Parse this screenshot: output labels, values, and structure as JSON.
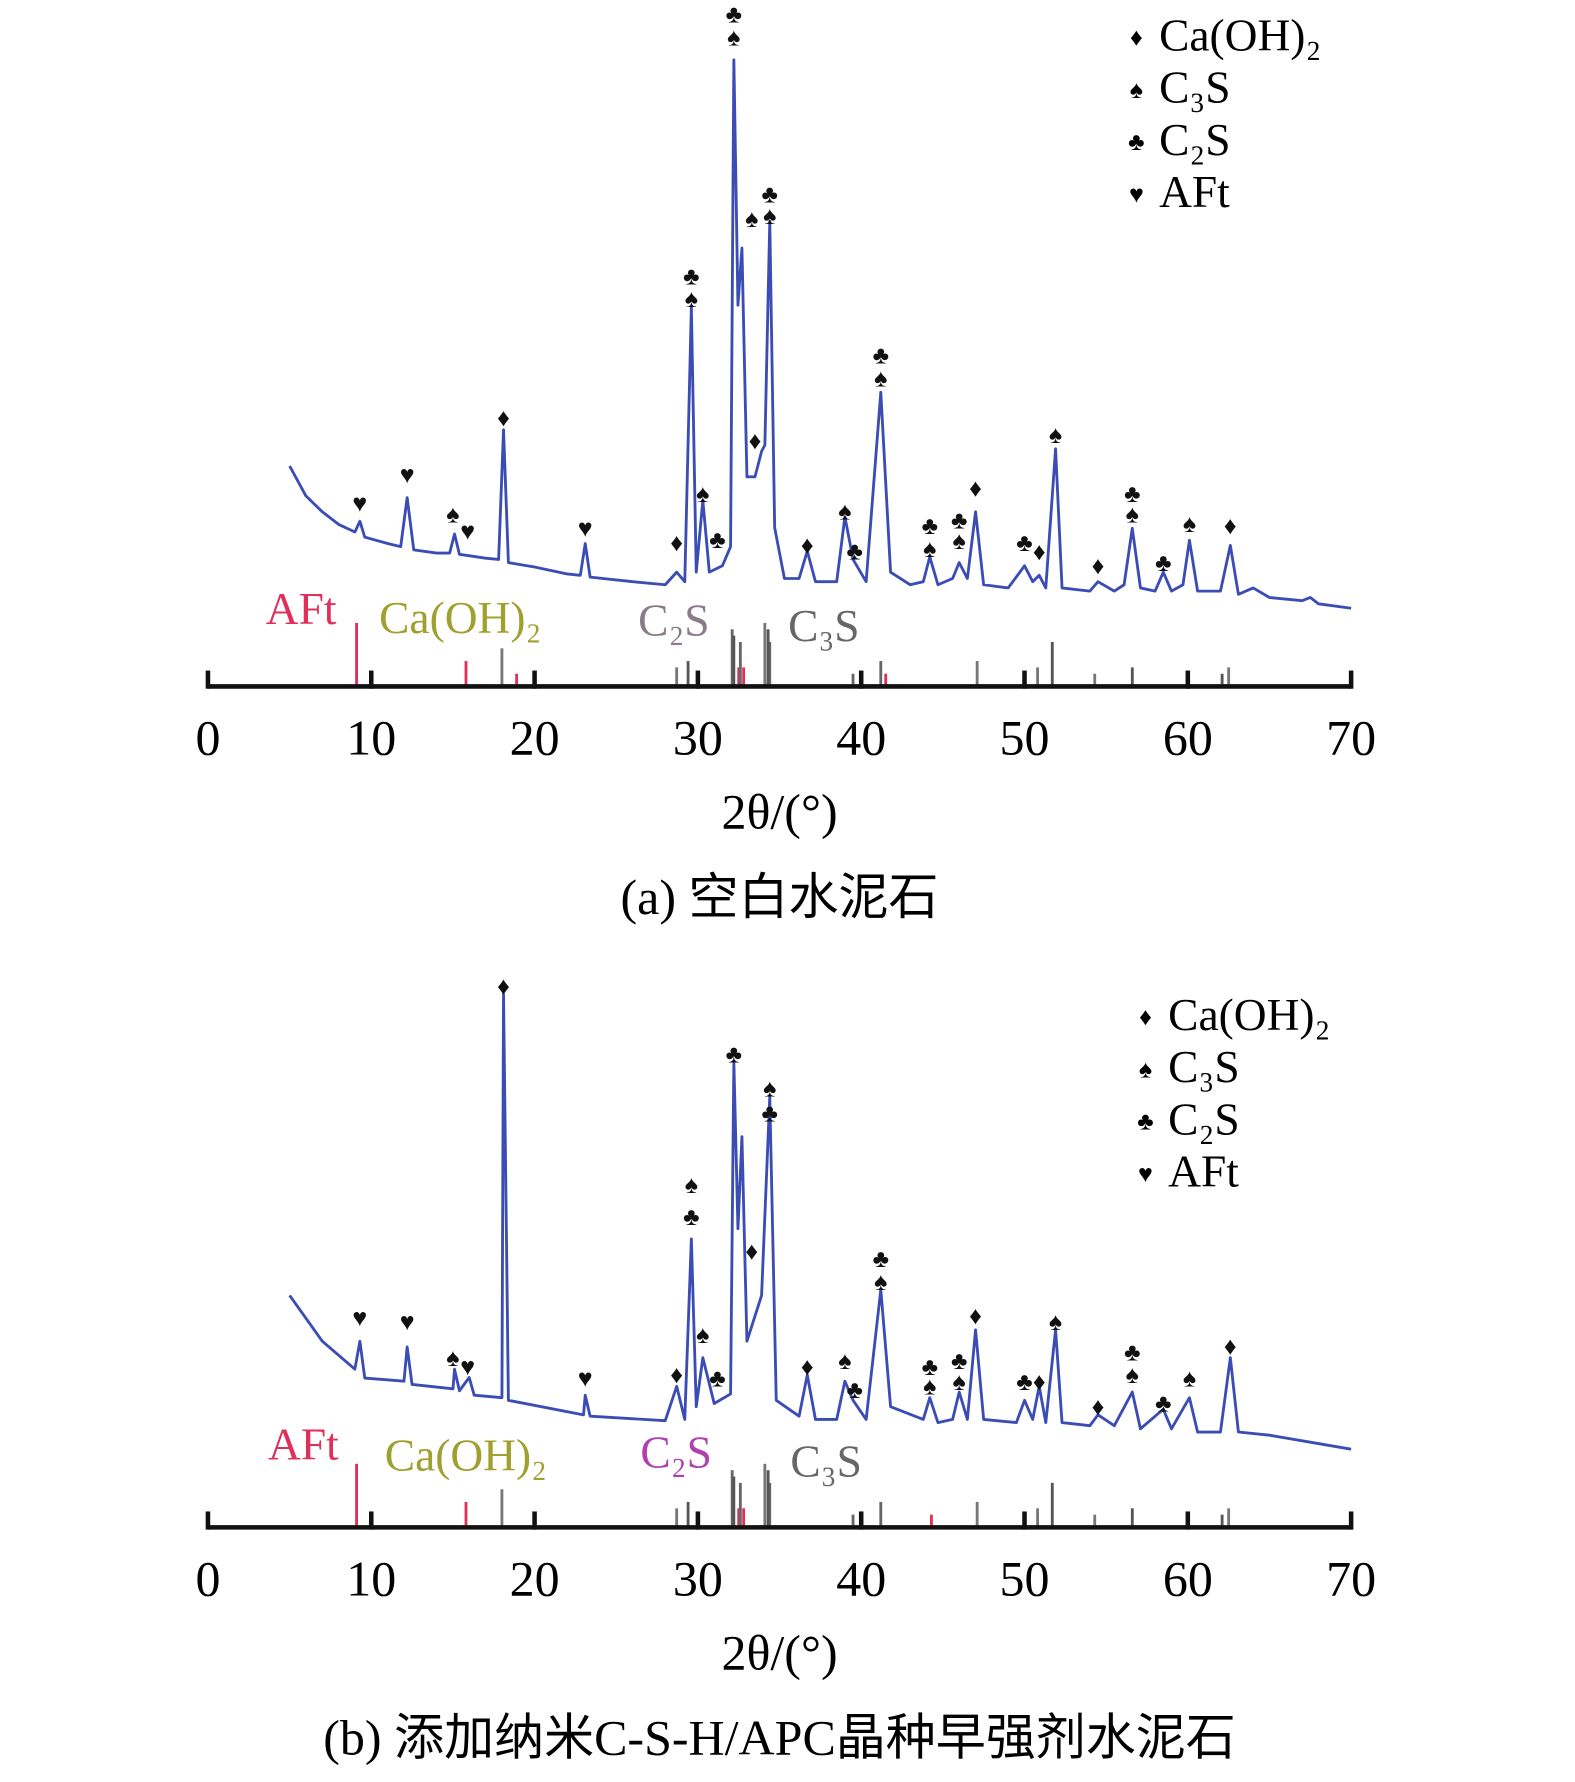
{
  "chart_data": [
    {
      "type": "line",
      "caption": "(a) 空白水泥石",
      "xlabel": "2θ/(°)",
      "xlim": [
        0,
        70
      ],
      "xticks": [
        0,
        10,
        20,
        30,
        40,
        50,
        60,
        70
      ],
      "ylim": [
        0,
        110
      ],
      "series": [
        {
          "color": "#3b4db5",
          "x": [
            5,
            6,
            7,
            8,
            9,
            9.3,
            9.6,
            11,
            11.8,
            12.2,
            12.6,
            14,
            14.8,
            15.1,
            15.4,
            17,
            17.8,
            18.1,
            18.4,
            20,
            22,
            22.8,
            23.1,
            23.4,
            26,
            28,
            28.7,
            29.2,
            29.6,
            29.9,
            30.3,
            30.7,
            31.5,
            32,
            32.2,
            32.45,
            32.7,
            33,
            33.5,
            33.9,
            34.1,
            34.4,
            34.7,
            35.3,
            36.2,
            36.7,
            37.2,
            38.5,
            39,
            39.5,
            40.3,
            41.2,
            41.8,
            43,
            43.8,
            44.2,
            44.7,
            45.6,
            46,
            46.5,
            47,
            47.5,
            49,
            50,
            50.5,
            50.9,
            51.3,
            51.9,
            52.3,
            54,
            54.5,
            55.5,
            56.1,
            56.6,
            57.1,
            58,
            58.5,
            59,
            59.7,
            60.1,
            60.6,
            62,
            62.6,
            63.1,
            64,
            65,
            67,
            67.5,
            68,
            70
          ],
          "values": [
            34.7,
            30,
            27.5,
            25.5,
            24.3,
            26,
            23.5,
            22.5,
            22,
            29.7,
            21.5,
            21,
            21,
            24,
            20.8,
            20.2,
            20,
            40.4,
            19.5,
            18.8,
            17.7,
            17.5,
            22.5,
            17.2,
            16.5,
            16,
            18,
            16.5,
            59.7,
            18,
            29.3,
            18,
            19,
            22,
            98.6,
            60,
            69,
            33,
            33,
            37,
            38,
            73.2,
            25,
            17,
            17,
            21.3,
            16.5,
            16.5,
            26.7,
            20,
            16.5,
            46.3,
            18,
            16,
            16.5,
            20.4,
            16,
            17,
            19.5,
            17,
            27.5,
            16,
            15.5,
            19,
            16.5,
            17.5,
            15.5,
            37.4,
            15.5,
            15,
            16.5,
            15,
            16,
            24.9,
            15.5,
            15,
            18,
            15,
            16,
            23,
            15,
            15,
            22.2,
            14.5,
            15.5,
            14,
            13.5,
            14,
            13,
            12.3
          ]
        }
      ],
      "markers": [
        {
          "x": 9.3,
          "y": 28.4,
          "symbol": "♥"
        },
        {
          "x": 12.2,
          "y": 32.9,
          "symbol": "♥"
        },
        {
          "x": 15,
          "y": 26.7,
          "symbol": "♠"
        },
        {
          "x": 15.9,
          "y": 24,
          "symbol": "♥"
        },
        {
          "x": 18.1,
          "y": 41.9,
          "symbol": "♦"
        },
        {
          "x": 23.1,
          "y": 24.5,
          "symbol": "♥"
        },
        {
          "x": 28.7,
          "y": 22.2,
          "symbol": "♦"
        },
        {
          "x": 29.6,
          "y": 60.6,
          "symbol": "♠"
        },
        {
          "x": 29.6,
          "y": 64.2,
          "symbol": "♣"
        },
        {
          "x": 30.3,
          "y": 29.9,
          "symbol": "♠"
        },
        {
          "x": 31.2,
          "y": 22.7,
          "symbol": "♣"
        },
        {
          "x": 32.2,
          "y": 101.8,
          "symbol": "♠"
        },
        {
          "x": 32.2,
          "y": 105.4,
          "symbol": "♣"
        },
        {
          "x": 33.3,
          "y": 73.2,
          "symbol": "♠"
        },
        {
          "x": 33.5,
          "y": 38.3,
          "symbol": "♦"
        },
        {
          "x": 34.4,
          "y": 73.7,
          "symbol": "♠"
        },
        {
          "x": 34.4,
          "y": 77.1,
          "symbol": "♣"
        },
        {
          "x": 36.7,
          "y": 21.8,
          "symbol": "♦"
        },
        {
          "x": 39,
          "y": 27.2,
          "symbol": "♠"
        },
        {
          "x": 39.6,
          "y": 20.9,
          "symbol": "♣"
        },
        {
          "x": 41.2,
          "y": 48.1,
          "symbol": "♠"
        },
        {
          "x": 41.2,
          "y": 51.7,
          "symbol": "♣"
        },
        {
          "x": 44.2,
          "y": 21.3,
          "symbol": "♠"
        },
        {
          "x": 44.2,
          "y": 24.9,
          "symbol": "♣"
        },
        {
          "x": 46,
          "y": 22.5,
          "symbol": "♠"
        },
        {
          "x": 46,
          "y": 25.8,
          "symbol": "♣"
        },
        {
          "x": 47,
          "y": 30.8,
          "symbol": "♦"
        },
        {
          "x": 50,
          "y": 22.2,
          "symbol": "♣"
        },
        {
          "x": 50.9,
          "y": 20.8,
          "symbol": "♦"
        },
        {
          "x": 51.9,
          "y": 39.2,
          "symbol": "♠"
        },
        {
          "x": 54.5,
          "y": 18.6,
          "symbol": "♦"
        },
        {
          "x": 56.6,
          "y": 26.7,
          "symbol": "♠"
        },
        {
          "x": 56.6,
          "y": 29.9,
          "symbol": "♣"
        },
        {
          "x": 58.5,
          "y": 19.1,
          "symbol": "♣"
        },
        {
          "x": 60.1,
          "y": 25.2,
          "symbol": "♠"
        },
        {
          "x": 62.6,
          "y": 24.9,
          "symbol": "♦"
        }
      ],
      "legend": [
        {
          "symbol": "♦",
          "label": "Ca(OH)₂"
        },
        {
          "symbol": "♠",
          "label": "C₃S"
        },
        {
          "symbol": "♣",
          "label": "C₂S"
        },
        {
          "symbol": "♥",
          "label": "AFt"
        }
      ],
      "reference": [
        {
          "label": "AFt",
          "color": "#e0305a",
          "stick_color": "#e0305a",
          "peaks": [
            {
              "x": 9.1,
              "h": 10
            },
            {
              "x": 15.8,
              "h": 4
            },
            {
              "x": 18.9,
              "h": 2
            },
            {
              "x": 32.5,
              "h": 3
            },
            {
              "x": 32.8,
              "h": 3
            },
            {
              "x": 41.5,
              "h": 2
            }
          ]
        },
        {
          "label": "Ca(OH)₂",
          "color": "#a0a030",
          "stick_color": "#777777",
          "peaks": [
            {
              "x": 18,
              "h": 6
            },
            {
              "x": 28.7,
              "h": 3
            },
            {
              "x": 34.1,
              "h": 10
            },
            {
              "x": 47.1,
              "h": 4
            },
            {
              "x": 50.8,
              "h": 3
            },
            {
              "x": 54.3,
              "h": 2
            },
            {
              "x": 62.5,
              "h": 3
            }
          ]
        },
        {
          "label": "C₂S",
          "color": "#8a7a8a",
          "stick_color": "#666666",
          "peaks": [
            {
              "x": 32.1,
              "h": 9
            },
            {
              "x": 32.6,
              "h": 7
            },
            {
              "x": 34.4,
              "h": 7
            },
            {
              "x": 41.2,
              "h": 4
            },
            {
              "x": 39.5,
              "h": 2
            }
          ]
        },
        {
          "label": "C₃S",
          "color": "#666666",
          "stick_color": "#555555",
          "peaks": [
            {
              "x": 29.4,
              "h": 4
            },
            {
              "x": 32.2,
              "h": 8
            },
            {
              "x": 34.3,
              "h": 9
            },
            {
              "x": 51.7,
              "h": 7
            },
            {
              "x": 56.6,
              "h": 3
            },
            {
              "x": 60,
              "h": 2
            },
            {
              "x": 62.1,
              "h": 2
            }
          ]
        }
      ]
    },
    {
      "type": "line",
      "caption": "(b) 添加纳米C-S-H/APC晶种早强剂水泥石",
      "xlabel": "2θ/(°)",
      "xlim": [
        0,
        70
      ],
      "xticks": [
        0,
        10,
        20,
        30,
        40,
        50,
        60,
        70
      ],
      "ylim": [
        0,
        110
      ],
      "series": [
        {
          "color": "#3b4db5",
          "x": [
            5,
            7,
            9,
            9.3,
            9.6,
            12,
            12.2,
            12.5,
            15,
            15.1,
            15.4,
            16,
            16.3,
            18,
            18.1,
            18.4,
            23,
            23.1,
            23.4,
            28,
            28.7,
            29.2,
            29.6,
            29.9,
            30.3,
            31,
            32,
            32.2,
            32.45,
            32.7,
            33,
            33.9,
            34.4,
            34.8,
            36.2,
            36.7,
            37.2,
            38.5,
            39,
            39.5,
            40.3,
            41.2,
            41.8,
            43.8,
            44.2,
            44.7,
            45.6,
            46,
            46.5,
            47,
            47.5,
            49.5,
            50,
            50.5,
            50.9,
            51.3,
            51.9,
            52.3,
            54,
            54.5,
            55.5,
            56.6,
            57.1,
            58.5,
            59,
            60.1,
            60.6,
            62,
            62.6,
            63.1,
            65,
            70
          ],
          "values": [
            36.5,
            29.3,
            24.9,
            29.3,
            23.5,
            23,
            28.4,
            22.5,
            21.8,
            24.9,
            21.5,
            23.6,
            20.8,
            20.4,
            83.9,
            20,
            17.7,
            20.8,
            17.5,
            16.8,
            22.2,
            17,
            45.4,
            19,
            26.7,
            19.5,
            21,
            73.2,
            47,
            61.5,
            29.3,
            36.5,
            67.8,
            20,
            17.5,
            24,
            17,
            17,
            23,
            20,
            17,
            37.4,
            19,
            17,
            20.4,
            16.5,
            17,
            21.3,
            17,
            31.1,
            17,
            16.5,
            20,
            17,
            22.2,
            16.5,
            31.1,
            16.5,
            16,
            17.7,
            16,
            21.3,
            15.5,
            18.6,
            15.5,
            20.4,
            15,
            15,
            26.7,
            15,
            14.5,
            12.3
          ]
        }
      ],
      "markers": [
        {
          "x": 9.3,
          "y": 32.6,
          "symbol": "♥"
        },
        {
          "x": 12.2,
          "y": 32,
          "symbol": "♥"
        },
        {
          "x": 15,
          "y": 26.3,
          "symbol": "♠"
        },
        {
          "x": 15.9,
          "y": 24.9,
          "symbol": "♥"
        },
        {
          "x": 18.1,
          "y": 84.8,
          "symbol": "♦"
        },
        {
          "x": 23.1,
          "y": 23.1,
          "symbol": "♥"
        },
        {
          "x": 28.7,
          "y": 23.6,
          "symbol": "♦"
        },
        {
          "x": 29.6,
          "y": 48.5,
          "symbol": "♣"
        },
        {
          "x": 29.6,
          "y": 53.5,
          "symbol": "♠"
        },
        {
          "x": 30.3,
          "y": 29.9,
          "symbol": "♠"
        },
        {
          "x": 31.2,
          "y": 23.1,
          "symbol": "♣"
        },
        {
          "x": 32.2,
          "y": 74.1,
          "symbol": "♣"
        },
        {
          "x": 33.3,
          "y": 43.1,
          "symbol": "♦"
        },
        {
          "x": 34.4,
          "y": 64.8,
          "symbol": "♣"
        },
        {
          "x": 34.4,
          "y": 68.7,
          "symbol": "♠"
        },
        {
          "x": 36.7,
          "y": 24.9,
          "symbol": "♦"
        },
        {
          "x": 39,
          "y": 25.8,
          "symbol": "♠"
        },
        {
          "x": 39.6,
          "y": 21.3,
          "symbol": "♣"
        },
        {
          "x": 41.2,
          "y": 38.3,
          "symbol": "♠"
        },
        {
          "x": 41.2,
          "y": 41.9,
          "symbol": "♣"
        },
        {
          "x": 44.2,
          "y": 21.8,
          "symbol": "♠"
        },
        {
          "x": 44.2,
          "y": 24.9,
          "symbol": "♣"
        },
        {
          "x": 46,
          "y": 22.5,
          "symbol": "♠"
        },
        {
          "x": 46,
          "y": 25.8,
          "symbol": "♣"
        },
        {
          "x": 47,
          "y": 32.9,
          "symbol": "♦"
        },
        {
          "x": 50,
          "y": 22.5,
          "symbol": "♣"
        },
        {
          "x": 50.9,
          "y": 22.5,
          "symbol": "♦"
        },
        {
          "x": 51.9,
          "y": 32,
          "symbol": "♠"
        },
        {
          "x": 54.5,
          "y": 18.6,
          "symbol": "♦"
        },
        {
          "x": 56.6,
          "y": 23.6,
          "symbol": "♠"
        },
        {
          "x": 56.6,
          "y": 27.2,
          "symbol": "♣"
        },
        {
          "x": 58.5,
          "y": 19.1,
          "symbol": "♣"
        },
        {
          "x": 60.1,
          "y": 23.1,
          "symbol": "♠"
        },
        {
          "x": 62.6,
          "y": 28.1,
          "symbol": "♦"
        }
      ],
      "legend": [
        {
          "symbol": "♦",
          "label": "Ca(OH)₂"
        },
        {
          "symbol": "♠",
          "label": "C₃S"
        },
        {
          "symbol": "♣",
          "label": "C₂S"
        },
        {
          "symbol": "♥",
          "label": "AFt"
        }
      ],
      "reference": [
        {
          "label": "AFt",
          "color": "#e0305a",
          "stick_color": "#e0305a",
          "peaks": [
            {
              "x": 9.1,
              "h": 10
            },
            {
              "x": 15.8,
              "h": 4
            },
            {
              "x": 32.5,
              "h": 3
            },
            {
              "x": 32.8,
              "h": 3
            },
            {
              "x": 44.3,
              "h": 2
            }
          ]
        },
        {
          "label": "Ca(OH)₂",
          "color": "#a0a030",
          "stick_color": "#777777",
          "peaks": [
            {
              "x": 18,
              "h": 6
            },
            {
              "x": 28.7,
              "h": 3
            },
            {
              "x": 34.1,
              "h": 10
            },
            {
              "x": 47.1,
              "h": 4
            },
            {
              "x": 50.8,
              "h": 3
            },
            {
              "x": 54.3,
              "h": 2
            },
            {
              "x": 62.5,
              "h": 3
            }
          ]
        },
        {
          "label": "C₂S",
          "color": "#b040b0",
          "stick_color": "#666666",
          "peaks": [
            {
              "x": 32.1,
              "h": 9
            },
            {
              "x": 32.6,
              "h": 7
            },
            {
              "x": 34.4,
              "h": 7
            },
            {
              "x": 41.2,
              "h": 4
            },
            {
              "x": 39.5,
              "h": 2
            }
          ]
        },
        {
          "label": "C₃S",
          "color": "#666666",
          "stick_color": "#555555",
          "peaks": [
            {
              "x": 29.4,
              "h": 4
            },
            {
              "x": 32.2,
              "h": 8
            },
            {
              "x": 34.3,
              "h": 9
            },
            {
              "x": 51.7,
              "h": 7
            },
            {
              "x": 56.6,
              "h": 3
            },
            {
              "x": 60,
              "h": 2
            },
            {
              "x": 62.1,
              "h": 2
            }
          ]
        }
      ]
    }
  ]
}
